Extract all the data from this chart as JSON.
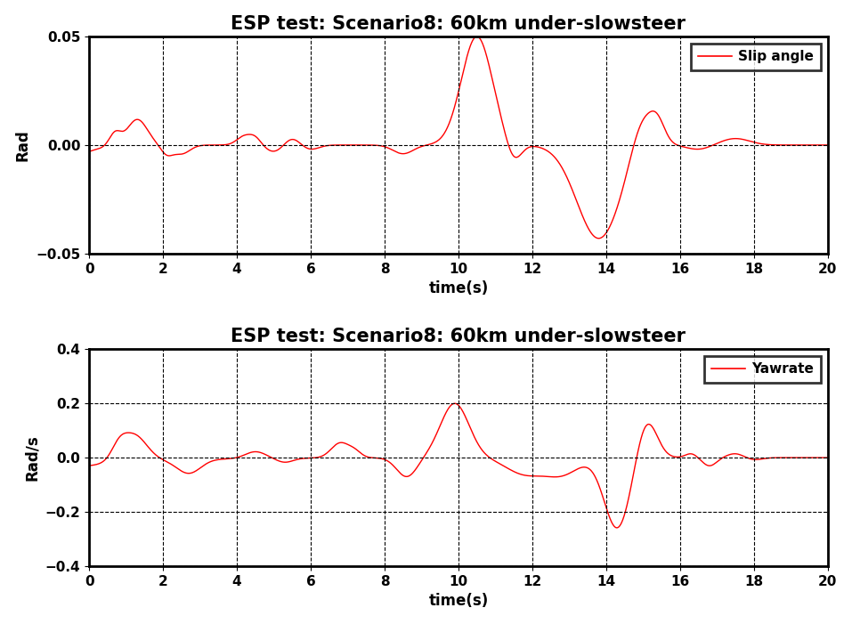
{
  "title": "ESP test: Scenario8: 60km under-slowsteer",
  "xlabel": "time(s)",
  "ylabel1": "Rad",
  "ylabel2": "Rad/s",
  "legend1": "Slip angle",
  "legend2": "Yawrate",
  "xlim": [
    0,
    20
  ],
  "ylim1": [
    -0.05,
    0.05
  ],
  "ylim2": [
    -0.4,
    0.4
  ],
  "yticks1": [
    -0.05,
    0,
    0.05
  ],
  "yticks2": [
    -0.4,
    -0.2,
    0,
    0.2,
    0.4
  ],
  "xticks": [
    0,
    2,
    4,
    6,
    8,
    10,
    12,
    14,
    16,
    18,
    20
  ],
  "line_color": "#FF0000",
  "bg_color": "#FFFFFF",
  "grid_color": "#000000",
  "title_fontsize": 15,
  "label_fontsize": 12,
  "tick_fontsize": 11,
  "legend_fontsize": 11
}
